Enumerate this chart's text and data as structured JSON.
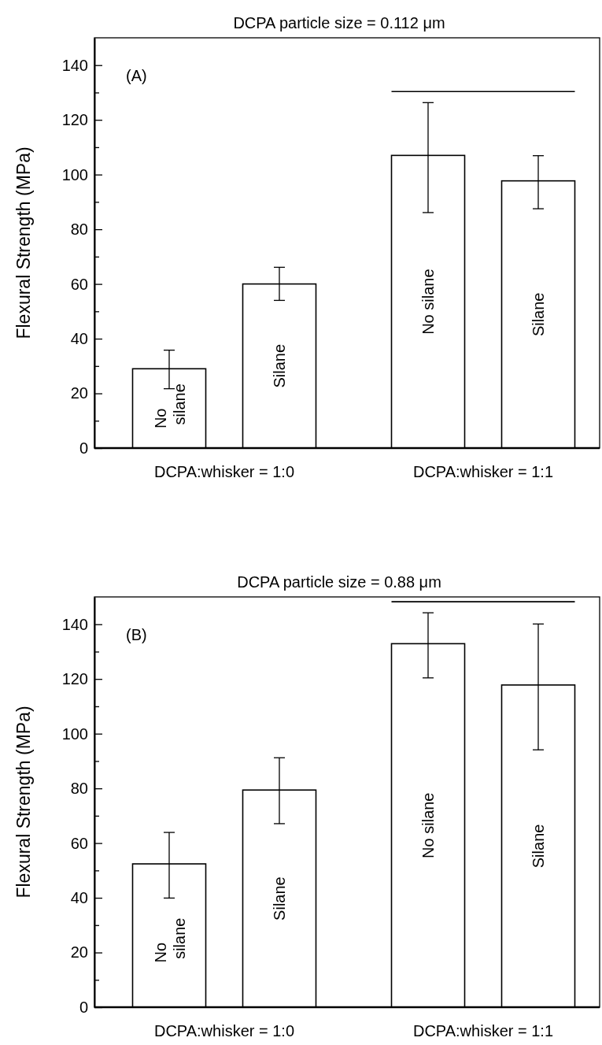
{
  "chart_data": [
    {
      "type": "bar",
      "title": "DCPA particle size = 0.112 μm",
      "ylabel": "Flexural Strength  (MPa)",
      "categories": [
        "No silane",
        "Silane",
        "No silane",
        "Silane"
      ],
      "values": [
        29,
        60,
        107,
        97.7
      ],
      "color": "#ffffff",
      "errors": [
        [
          21.7,
          35.8
        ],
        [
          54,
          66.1
        ],
        [
          86.1,
          126.3
        ],
        [
          87.5,
          106.9
        ]
      ],
      "ylim": [
        0,
        150
      ],
      "yticks": [
        0,
        {
          "value": 10,
          "label": null
        },
        20,
        {
          "value": 30,
          "label": null
        },
        40,
        {
          "value": 50,
          "label": null
        },
        60,
        {
          "value": 70,
          "label": null
        },
        80,
        {
          "value": 90,
          "label": null
        },
        100,
        {
          "value": 110,
          "label": null
        },
        120,
        {
          "value": 130,
          "label": null
        },
        140
      ],
      "annotations": [
        "(A)",
        "DCPA:whisker = 1:0",
        "DCPA:whisker = 1:1"
      ]
    },
    {
      "type": "bar",
      "title": "DCPA particle size = 0.88 μm",
      "ylabel": "Flexural Strength  (MPa)",
      "categories": [
        "No silane",
        "Silane",
        "No silane",
        "Silane"
      ],
      "values": [
        52.4,
        79.4,
        132.9,
        117.8
      ],
      "color": "#ffffff",
      "errors": [
        [
          39.9,
          63.9
        ],
        [
          67.1,
          91.2
        ],
        [
          120.4,
          144.2
        ],
        [
          94.1,
          140.1
        ]
      ],
      "ylim": [
        0,
        150
      ],
      "yticks": [
        0,
        {
          "value": 10,
          "label": null
        },
        20,
        {
          "value": 30,
          "label": null
        },
        40,
        {
          "value": 50,
          "label": null
        },
        60,
        {
          "value": 70,
          "label": null
        },
        80,
        {
          "value": 90,
          "label": null
        },
        100,
        {
          "value": 110,
          "label": null
        },
        120,
        {
          "value": 130,
          "label": null
        },
        140
      ],
      "annotations": [
        "(B)",
        "DCPA:whisker = 1:0",
        "DCPA:whisker = 1:1"
      ]
    }
  ]
}
